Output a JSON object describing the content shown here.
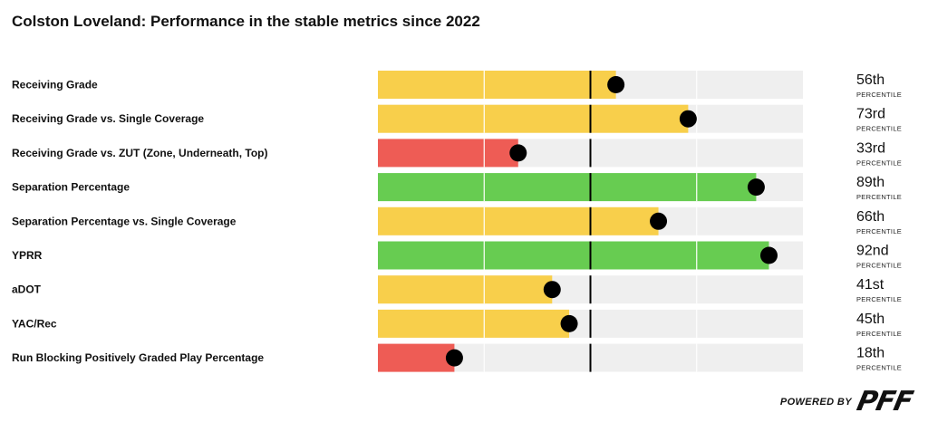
{
  "title": "Colston Loveland: Performance in the stable metrics since 2022",
  "footer": {
    "powered_by": "POWERED BY",
    "logo": "PFF"
  },
  "colors": {
    "red": "#EE5C55",
    "yellow": "#F8CF4B",
    "green": "#67CC51",
    "track": "#EFEFEF",
    "marker": "#000000"
  },
  "chart_data": {
    "type": "bar",
    "orientation": "horizontal",
    "title": "Colston Loveland: Performance in the stable metrics since 2022",
    "xlim": [
      0,
      100
    ],
    "reference_line": 50,
    "categories": [
      "Receiving Grade",
      "Receiving Grade vs. Single Coverage",
      "Receiving Grade vs. ZUT (Zone, Underneath, Top)",
      "Separation Percentage",
      "Separation Percentage vs. Single Coverage",
      "YPRR",
      "aDOT",
      "YAC/Rec",
      "Run Blocking Positively Graded Play Percentage"
    ],
    "values": [
      56,
      73,
      33,
      89,
      66,
      92,
      41,
      45,
      18
    ],
    "value_labels": [
      "56th",
      "73rd",
      "33rd",
      "89th",
      "66th",
      "92nd",
      "41st",
      "45th",
      "18th"
    ],
    "value_unit": "PERCENTILE",
    "bar_colors": [
      "yellow",
      "yellow",
      "red",
      "green",
      "yellow",
      "green",
      "yellow",
      "yellow",
      "red"
    ]
  }
}
